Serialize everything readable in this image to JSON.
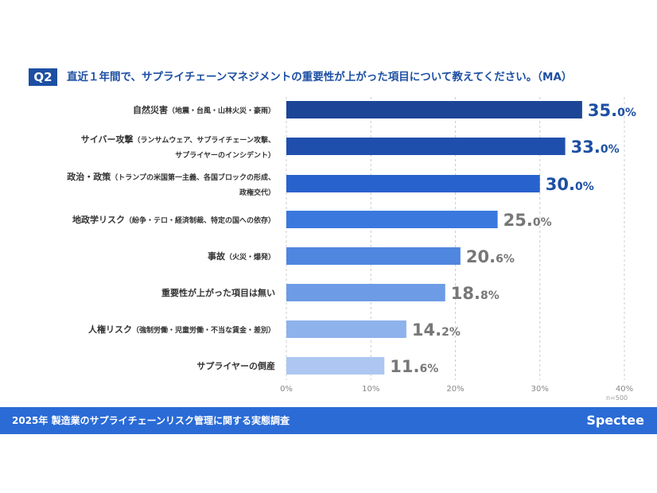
{
  "question_badge": "Q2",
  "title": "直近１年間で、サプライチェーンマネジメントの重要性が上がった項目について教えてください。（MA）",
  "sample_size": "n=500",
  "footer": {
    "text": "2025年 製造業のサプライチェーンリスク管理に関する実態調査",
    "logo": "Spectee"
  },
  "labels": [
    {
      "main": "自然災害",
      "sub": "（地震・台風・山林火災・豪雨）",
      "sub2": ""
    },
    {
      "main": "サイバー攻撃",
      "sub": "（ランサムウェア、サプライチェーン攻撃、",
      "sub2": "サプライヤーのインシデント）"
    },
    {
      "main": "政治・政策",
      "sub": "（トランプの米国第一主義、各国ブロックの形成、",
      "sub2": "政権交代）"
    },
    {
      "main": "地政学リスク",
      "sub": "（紛争・テロ・経済制裁、特定の国への依存）",
      "sub2": ""
    },
    {
      "main": "事故",
      "sub": "（火災・爆発）",
      "sub2": ""
    },
    {
      "main": "重要性が上がった項目は無い",
      "sub": "",
      "sub2": ""
    },
    {
      "main": "人権リスク",
      "sub": "（強制労働・児童労働・不当な賃金・差別）",
      "sub2": ""
    },
    {
      "main": "サプライヤーの倒産",
      "sub": "",
      "sub2": ""
    }
  ],
  "chart_data": {
    "type": "bar",
    "orientation": "horizontal",
    "categories": [
      "自然災害（地震・台風・山林火災・豪雨）",
      "サイバー攻撃（ランサムウェア、サプライチェーン攻撃、サプライヤーのインシデント）",
      "政治・政策（トランプの米国第一主義、各国ブロックの形成、政権交代）",
      "地政学リスク（紛争・テロ・経済制裁、特定の国への依存）",
      "事故（火災・爆発）",
      "重要性が上がった項目は無い",
      "人権リスク（強制労働・児童労働・不当な賃金・差別）",
      "サプライヤーの倒産"
    ],
    "values": [
      35.0,
      33.0,
      30.0,
      25.0,
      20.6,
      18.8,
      14.2,
      11.6
    ],
    "value_labels": [
      [
        "35.",
        "0%"
      ],
      [
        "33.",
        "0%"
      ],
      [
        "30.",
        "0%"
      ],
      [
        "25.",
        "0%"
      ],
      [
        "20.",
        "6%"
      ],
      [
        "18.",
        "8%"
      ],
      [
        "14.",
        "2%"
      ],
      [
        "11.",
        "6%"
      ]
    ],
    "bar_colors": [
      "#1d4597",
      "#1f4fad",
      "#2862cc",
      "#3a78de",
      "#4f86e0",
      "#6d9be6",
      "#8eb2ec",
      "#adc7f2"
    ],
    "label_colors": [
      "#1d4fa3",
      "#1d4fa3",
      "#1d4fa3",
      "#777777",
      "#777777",
      "#777777",
      "#777777",
      "#777777"
    ],
    "xlim": [
      0,
      40
    ],
    "xticks": [
      "0%",
      "10%",
      "20%",
      "30%",
      "40%"
    ],
    "grid": true
  }
}
